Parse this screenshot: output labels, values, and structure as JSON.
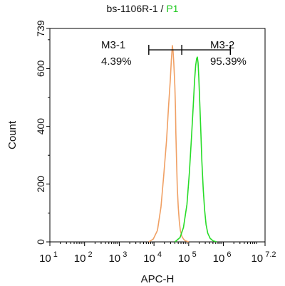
{
  "chart_data": {
    "type": "line",
    "title_prefix": "bs-1106R-1 / ",
    "title_series": "P1",
    "xlabel": "APC-H",
    "ylabel": "Count",
    "x_scale": "log10",
    "xlim": [
      1,
      7.2
    ],
    "x_ticks": [
      {
        "value": 1,
        "base": "10",
        "exp": "1"
      },
      {
        "value": 2,
        "base": "10",
        "exp": "2"
      },
      {
        "value": 3,
        "base": "10",
        "exp": "3"
      },
      {
        "value": 4,
        "base": "10",
        "exp": "4"
      },
      {
        "value": 5,
        "base": "10",
        "exp": "5"
      },
      {
        "value": 6,
        "base": "10",
        "exp": "6"
      },
      {
        "value": 7.2,
        "base": "10",
        "exp": "7.2"
      }
    ],
    "ylim": [
      0,
      739
    ],
    "y_ticks": [
      0,
      200,
      400,
      600,
      739
    ],
    "grid": false,
    "series": [
      {
        "name": "",
        "color": "#f0a064",
        "x": [
          3.85,
          3.98,
          4.1,
          4.2,
          4.28,
          4.36,
          4.42,
          4.47,
          4.5,
          4.52,
          4.53,
          4.55,
          4.57,
          4.6,
          4.62,
          4.63,
          4.65,
          4.67,
          4.7,
          4.73,
          4.76,
          4.8,
          4.85,
          4.9,
          5.0
        ],
        "y": [
          0,
          10,
          40,
          120,
          230,
          350,
          470,
          560,
          630,
          665,
          680,
          660,
          620,
          540,
          460,
          380,
          280,
          190,
          120,
          70,
          40,
          20,
          10,
          4,
          0
        ]
      },
      {
        "name": "P1",
        "color": "#28dc28",
        "x": [
          4.6,
          4.75,
          4.85,
          4.95,
          5.02,
          5.08,
          5.13,
          5.17,
          5.2,
          5.23,
          5.25,
          5.27,
          5.29,
          5.32,
          5.35,
          5.38,
          5.42,
          5.46,
          5.5,
          5.55,
          5.62,
          5.7,
          5.8
        ],
        "y": [
          0,
          15,
          50,
          130,
          240,
          360,
          470,
          560,
          610,
          635,
          640,
          620,
          570,
          480,
          380,
          280,
          180,
          110,
          60,
          30,
          12,
          4,
          0
        ]
      }
    ],
    "gates": [
      {
        "name": "M3-1",
        "percent": "4.39%",
        "x_from": 3.85,
        "x_to": 4.8
      },
      {
        "name": "M3-2",
        "percent": "95.39%",
        "x_from": 4.8,
        "x_to": 6.2
      }
    ],
    "gate_y": 665
  }
}
